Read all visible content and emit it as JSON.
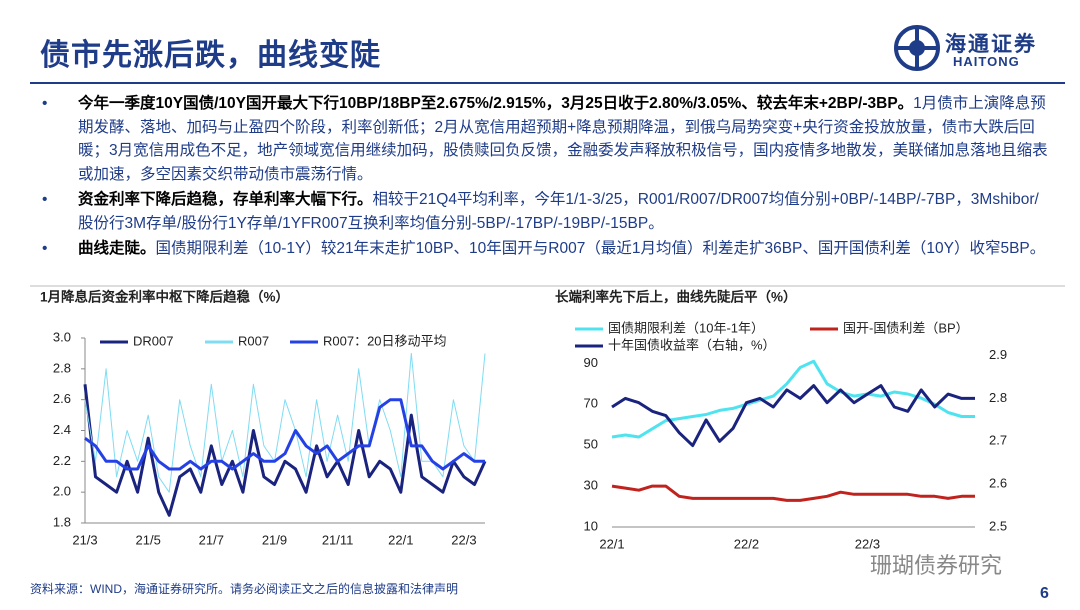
{
  "header": {
    "title": "债市先涨后跌，曲线变陡",
    "logo_cn": "海通证券",
    "logo_en": "HAITONG"
  },
  "bullets": [
    {
      "bold": "今年一季度10Y国债/10Y国开最大下行10BP/18BP至2.675%/2.915%，3月25日收于2.80%/3.05%、较去年末+2BP/-3BP。",
      "text": "1月债市上演降息预期发酵、落地、加码与止盈四个阶段，利率创新低；2月从宽信用超预期+降息预期降温，到俄乌局势突变+央行资金投放放量，债市大跌后回暖；3月宽信用成色不足，地产领域宽信用继续加码，股债赎回负反馈，金融委发声释放积极信号，国内疫情多地散发，美联储加息落地且缩表或加速，多空因素交织带动债市震荡行情。"
    },
    {
      "bold": "资金利率下降后趋稳，存单利率大幅下行。",
      "text": "相较于21Q4平均利率，今年1/1-3/25，R001/R007/DR007均值分别+0BP/-14BP/-7BP，3Mshibor/股份行3M存单/股份行1Y存单/1YFR007互换利率均值分别-5BP/-17BP/-19BP/-15BP。"
    },
    {
      "bold": "曲线走陡。",
      "text": "国债期限利差（10-1Y）较21年末走扩10BP、10年国开与R007（最近1月均值）利差走扩36BP、国开国债利差（10Y）收窄5BP。"
    }
  ],
  "chart_data": [
    {
      "type": "line",
      "title": "1月降息后资金利率中枢下降后趋稳（%）",
      "categories": [
        "21/3",
        null,
        null,
        null,
        null,
        null,
        "21/5",
        null,
        null,
        null,
        null,
        null,
        "21/7",
        null,
        null,
        null,
        null,
        null,
        "21/9",
        null,
        null,
        null,
        null,
        null,
        "21/11",
        null,
        null,
        null,
        null,
        null,
        "22/1",
        null,
        null,
        null,
        null,
        null,
        "22/3",
        null,
        null
      ],
      "series": [
        {
          "name": "DR007",
          "color": "#1a237e",
          "values": [
            2.7,
            2.1,
            2.05,
            2.0,
            2.2,
            2.0,
            2.35,
            2.0,
            1.85,
            2.1,
            2.15,
            2.0,
            2.3,
            2.05,
            2.2,
            2.0,
            2.4,
            2.1,
            2.05,
            2.2,
            2.15,
            2.0,
            2.3,
            2.1,
            2.2,
            2.05,
            2.4,
            2.1,
            2.2,
            2.15,
            2.0,
            2.5,
            2.1,
            2.05,
            2.0,
            2.2,
            2.1,
            2.05,
            2.2
          ]
        },
        {
          "name": "R007",
          "color": "#7fdcf2",
          "values": [
            2.6,
            2.2,
            2.8,
            2.1,
            2.4,
            2.2,
            2.5,
            2.1,
            2.0,
            2.6,
            2.3,
            2.1,
            2.7,
            2.2,
            2.4,
            2.1,
            2.7,
            2.3,
            2.2,
            2.6,
            2.4,
            2.1,
            2.6,
            2.2,
            2.5,
            2.2,
            2.8,
            2.3,
            2.6,
            2.4,
            2.1,
            2.9,
            2.2,
            2.2,
            2.1,
            2.6,
            2.3,
            2.2,
            2.9
          ]
        },
        {
          "name": "R007：20日移动平均",
          "color": "#2541e6",
          "values": [
            2.35,
            2.3,
            2.2,
            2.2,
            2.15,
            2.15,
            2.3,
            2.2,
            2.15,
            2.15,
            2.2,
            2.15,
            2.2,
            2.2,
            2.15,
            2.2,
            2.25,
            2.2,
            2.2,
            2.25,
            2.4,
            2.3,
            2.25,
            2.3,
            2.2,
            2.25,
            2.3,
            2.3,
            2.55,
            2.6,
            2.6,
            2.3,
            2.3,
            2.2,
            2.15,
            2.2,
            2.25,
            2.2,
            2.2
          ]
        }
      ],
      "ylim": [
        1.8,
        3.0
      ],
      "yticks": [
        1.8,
        {
          "value": 2.0,
          "label": "2.0"
        },
        2.2,
        2.4,
        2.6,
        2.8,
        {
          "value": 3.0,
          "label": "3.0"
        }
      ]
    },
    {
      "type": "line",
      "title": "长端利率先下后上，曲线先陡后平（%）",
      "categories": [
        "22/1",
        null,
        null,
        null,
        null,
        null,
        null,
        null,
        null,
        null,
        "22/2",
        null,
        null,
        null,
        null,
        null,
        null,
        null,
        null,
        "22/3",
        null,
        null,
        null,
        null,
        null,
        null,
        null,
        null
      ],
      "series": [
        {
          "name": "国债期限利差（10年-1年）",
          "color": "#4fe3f0",
          "values": [
            54,
            55,
            54,
            58,
            62,
            63,
            64,
            65,
            67,
            68,
            70,
            72,
            74,
            80,
            88,
            91,
            80,
            76,
            74,
            75,
            74,
            76,
            75,
            73,
            70,
            66,
            64,
            64
          ]
        },
        {
          "name": "国开-国债利差（BP）",
          "color": "#c0231e",
          "values": [
            30,
            29,
            28,
            30,
            30,
            25,
            24,
            24,
            24,
            24,
            24,
            24,
            24,
            23,
            23,
            24,
            25,
            27,
            26,
            26,
            26,
            26,
            26,
            25,
            25,
            24,
            25,
            25
          ]
        },
        {
          "name": "十年国债收益率（右轴，%）",
          "color": "#1a237e",
          "axis": "y2",
          "values": [
            2.78,
            2.8,
            2.79,
            2.77,
            2.76,
            2.72,
            2.69,
            2.75,
            2.7,
            2.73,
            2.79,
            2.8,
            2.78,
            2.82,
            2.8,
            2.83,
            2.79,
            2.82,
            2.79,
            2.81,
            2.83,
            2.78,
            2.77,
            2.82,
            2.78,
            2.81,
            2.8,
            2.8
          ]
        }
      ],
      "ylim": [
        10,
        98
      ],
      "yticks": [
        10,
        30,
        50,
        70,
        90
      ],
      "y2lim": [
        2.5,
        2.92
      ],
      "y2ticks": [
        2.5,
        2.6,
        2.7,
        2.8,
        2.9
      ]
    }
  ],
  "footer": {
    "source": "资料来源：WIND，海通证券研究所。请务必阅读正文之后的信息披露和法律声明",
    "page": "6",
    "watermark": "珊瑚债券研究"
  }
}
